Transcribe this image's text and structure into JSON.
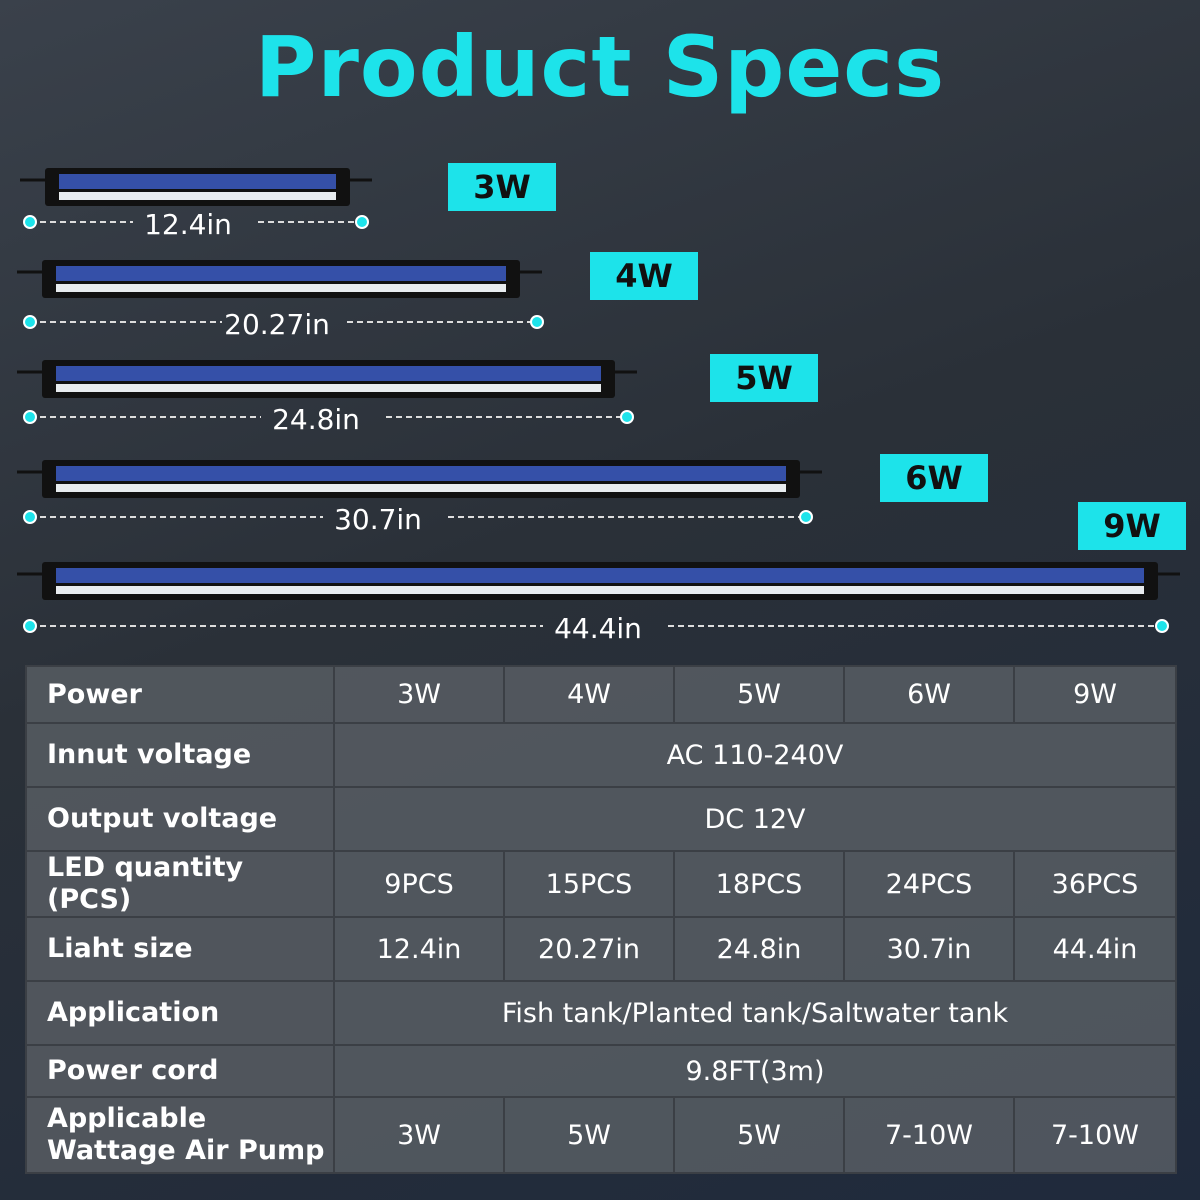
{
  "header": {
    "title": "Product Specs"
  },
  "products": [
    {
      "wattage": "3W",
      "length": "12.4in"
    },
    {
      "wattage": "4W",
      "length": "20.27in"
    },
    {
      "wattage": "5W",
      "length": "24.8in"
    },
    {
      "wattage": "6W",
      "length": "30.7in"
    },
    {
      "wattage": "9W",
      "length": "44.4in"
    }
  ],
  "table": {
    "rows": [
      {
        "label": "Power",
        "cells": [
          "3W",
          "4W",
          "5W",
          "6W",
          "9W"
        ]
      },
      {
        "label": "Innut voltage",
        "cells": [
          "AC 110-240V"
        ]
      },
      {
        "label": "Output voltage",
        "cells": [
          "DC 12V"
        ]
      },
      {
        "label": "LED quantity (PCS)",
        "cells": [
          "9PCS",
          "15PCS",
          "18PCS",
          "24PCS",
          "36PCS"
        ]
      },
      {
        "label": "Liaht size",
        "cells": [
          "12.4in",
          "20.27in",
          "24.8in",
          "30.7in",
          "44.4in"
        ]
      },
      {
        "label": "Application",
        "cells": [
          "Fish tank/Planted tank/Saltwater tank"
        ]
      },
      {
        "label": "Power cord",
        "cells": [
          "9.8FT(3m)"
        ]
      },
      {
        "label": "Applicable Wattage Air Pump",
        "cells": [
          "3W",
          "5W",
          "5W",
          "7-10W",
          "7-10W"
        ]
      }
    ]
  }
}
